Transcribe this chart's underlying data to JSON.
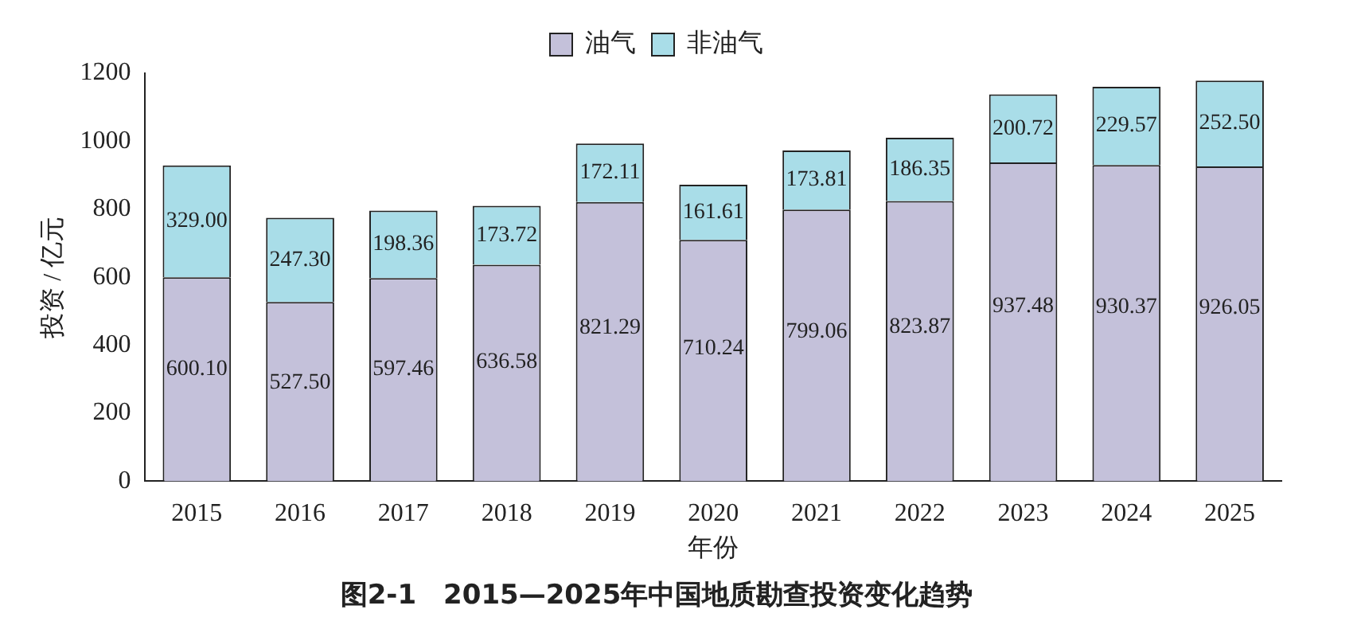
{
  "chart_data": {
    "type": "bar",
    "title": "图2-1　2015—2025年中国地质勘查投资变化趋势",
    "xlabel": "年份",
    "ylabel": "投资 / 亿元",
    "categories": [
      "2015",
      "2016",
      "2017",
      "2018",
      "2019",
      "2020",
      "2021",
      "2022",
      "2023",
      "2024",
      "2025"
    ],
    "stacked": true,
    "series": [
      {
        "name": "油气",
        "color": "#c4c1da",
        "values": [
          600.1,
          527.5,
          597.46,
          636.58,
          821.29,
          710.24,
          799.06,
          823.87,
          937.48,
          930.37,
          926.05
        ],
        "value_labels": [
          "600.10",
          "527.50",
          "597.46",
          "636.58",
          "821.29",
          "710.24",
          "799.06",
          "823.87",
          "937.48",
          "930.37",
          "926.05"
        ]
      },
      {
        "name": "非油气",
        "color": "#a9dde8",
        "values": [
          329.0,
          247.3,
          198.36,
          173.72,
          172.11,
          161.61,
          173.81,
          186.35,
          200.72,
          229.57,
          252.5
        ],
        "value_labels": [
          "329.00",
          "247.30",
          "198.36",
          "173.72",
          "172.11",
          "161.61",
          "173.81",
          "186.35",
          "200.72",
          "229.57",
          "252.50"
        ]
      }
    ],
    "ylim": [
      0,
      1200
    ],
    "yticks": [
      0,
      200,
      400,
      600,
      800,
      1000,
      1200
    ],
    "grid": false,
    "legend": "top"
  }
}
